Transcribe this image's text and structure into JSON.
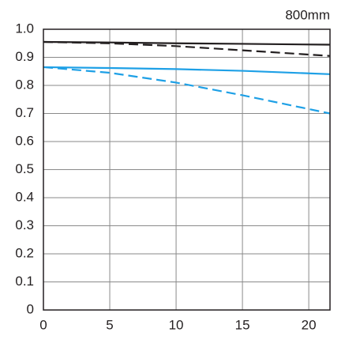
{
  "chart_data": {
    "type": "line",
    "title": "800mm",
    "x": [
      0,
      5,
      10,
      15,
      21.6
    ],
    "series": [
      {
        "color": "#231f20",
        "dash": false,
        "values": [
          0.955,
          0.953,
          0.95,
          0.948,
          0.945
        ]
      },
      {
        "color": "#231f20",
        "dash": true,
        "values": [
          0.955,
          0.95,
          0.94,
          0.925,
          0.905
        ]
      },
      {
        "color": "#1ea0e6",
        "dash": false,
        "values": [
          0.865,
          0.862,
          0.858,
          0.852,
          0.84
        ]
      },
      {
        "color": "#1ea0e6",
        "dash": true,
        "values": [
          0.865,
          0.845,
          0.81,
          0.765,
          0.7
        ]
      }
    ],
    "xlim": [
      0,
      21.6
    ],
    "xticks": [
      0,
      5,
      10,
      15,
      20
    ],
    "ylim": [
      0,
      1
    ],
    "yticks": [
      0,
      0.1,
      0.2,
      0.3,
      0.4,
      0.5,
      0.6,
      0.7,
      0.8,
      0.9,
      {
        "value": 1,
        "label": "1.0"
      }
    ],
    "grid": true
  }
}
